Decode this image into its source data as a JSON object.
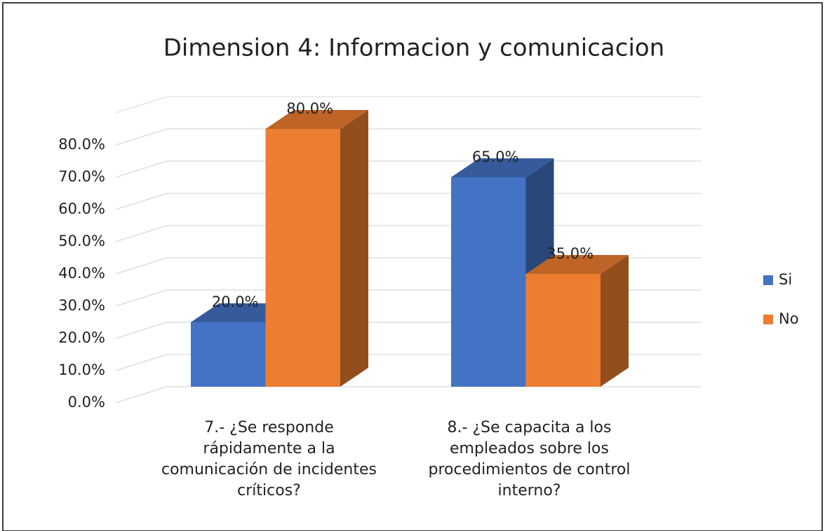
{
  "chart_data": {
    "type": "bar3d",
    "title": "Dimension 4: Informacion y comunicacion",
    "categories": [
      "7.- ¿Se responde rápidamente a la comunicación de incidentes críticos?",
      "8.- ¿Se capacita a los empleados sobre los procedimientos de control interno?"
    ],
    "series": [
      {
        "name": "Si",
        "color": "#4472c4",
        "values": [
          20,
          65
        ],
        "value_labels": [
          "20.0%",
          "65.0%"
        ]
      },
      {
        "name": "No",
        "color": "#ed7d31",
        "values": [
          80,
          35
        ],
        "value_labels": [
          "80.0%",
          "35.0%"
        ]
      }
    ],
    "ylim": [
      0,
      90
    ],
    "yticks": [
      {
        "value": 0,
        "label": "0.0%"
      },
      {
        "value": 10,
        "label": "10.0%"
      },
      {
        "value": 20,
        "label": "20.0%"
      },
      {
        "value": 30,
        "label": "30.0%"
      },
      {
        "value": 40,
        "label": "40.0%"
      },
      {
        "value": 50,
        "label": "50.0%"
      },
      {
        "value": 60,
        "label": "60.0%"
      },
      {
        "value": 70,
        "label": "70.0%"
      },
      {
        "value": 80,
        "label": "80.0%"
      }
    ],
    "grid": true,
    "legend": "right"
  }
}
